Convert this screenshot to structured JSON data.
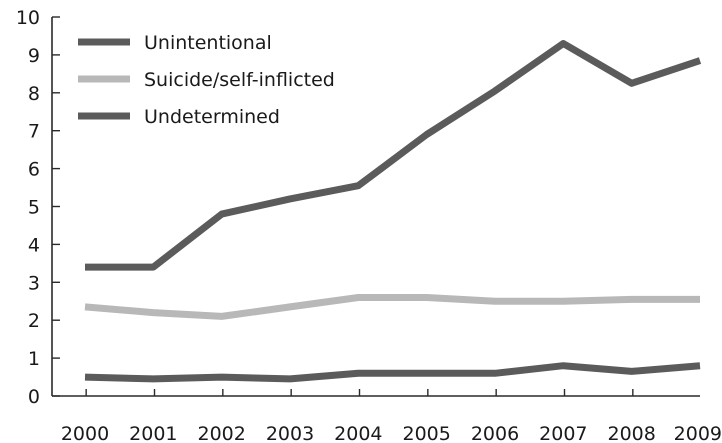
{
  "chart_data": {
    "type": "line",
    "title": "",
    "xlabel": "",
    "ylabel": "",
    "x": [
      "2000",
      "2001",
      "2002",
      "2003",
      "2004",
      "2005",
      "2006",
      "2007",
      "2008",
      "2009"
    ],
    "ylim": [
      0,
      10
    ],
    "yticks": [
      "0",
      "1",
      "2",
      "3",
      "4",
      "5",
      "6",
      "7",
      "8",
      "9",
      "10"
    ],
    "legend_position": "top-left",
    "grid": false,
    "series": [
      {
        "name": "Unintentional",
        "color": "#5b5b5b",
        "values": [
          3.4,
          3.4,
          4.8,
          5.2,
          5.55,
          6.9,
          8.05,
          9.3,
          8.25,
          8.85
        ]
      },
      {
        "name": "Suicide/self-inflicted",
        "color": "#b8b8b8",
        "values": [
          2.35,
          2.2,
          2.1,
          2.35,
          2.6,
          2.6,
          2.5,
          2.5,
          2.55,
          2.55
        ]
      },
      {
        "name": "Undetermined",
        "color": "#5b5b5b",
        "values": [
          0.5,
          0.45,
          0.5,
          0.45,
          0.6,
          0.6,
          0.6,
          0.8,
          0.65,
          0.8
        ]
      }
    ]
  }
}
